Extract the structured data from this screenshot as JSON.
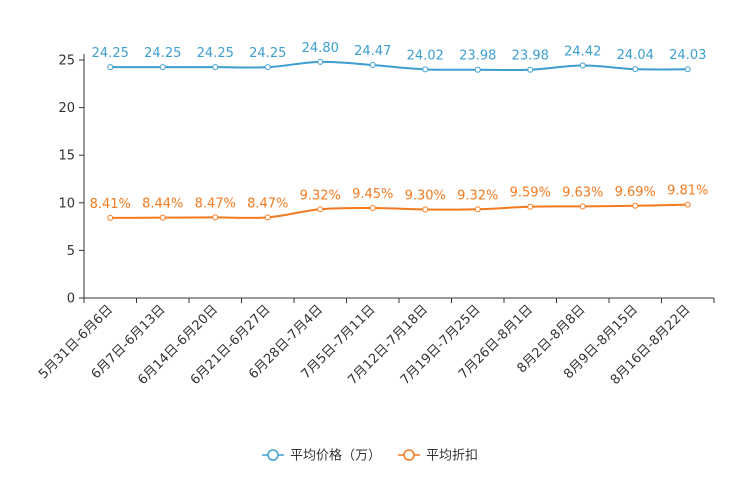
{
  "chart_data": {
    "type": "line",
    "title": "",
    "xlabel": "",
    "ylabel": "",
    "ylim": [
      0,
      25
    ],
    "yticks": [
      0,
      5,
      10,
      15,
      20,
      25
    ],
    "legend_position": "bottom-center",
    "categories": [
      "5月31日-6月6日",
      "6月7日-6月13日",
      "6月14日-6月20日",
      "6月21日-6月27日",
      "6月28日-7月4日",
      "7月5日-7月11日",
      "7月12日-7月18日",
      "7月19日-7月25日",
      "7月26日-8月1日",
      "8月2日-8月8日",
      "8月9日-8月15日",
      "8月16日-8月22日"
    ],
    "series": [
      {
        "name": "平均价格（万）",
        "color": "#3d9fd0",
        "values": [
          24.25,
          24.25,
          24.25,
          24.25,
          24.8,
          24.47,
          24.02,
          23.98,
          23.98,
          24.42,
          24.04,
          24.03
        ],
        "labels": [
          "24.25",
          "24.25",
          "24.25",
          "24.25",
          "24.80",
          "24.47",
          "24.02",
          "23.98",
          "23.98",
          "24.42",
          "24.04",
          "24.03"
        ]
      },
      {
        "name": "平均折扣",
        "color": "#f47a20",
        "values": [
          8.41,
          8.44,
          8.47,
          8.47,
          9.32,
          9.45,
          9.3,
          9.32,
          9.59,
          9.63,
          9.69,
          9.81
        ],
        "labels": [
          "8.41%",
          "8.44%",
          "8.47%",
          "8.47%",
          "9.32%",
          "9.45%",
          "9.30%",
          "9.32%",
          "9.59%",
          "9.63%",
          "9.69%",
          "9.81%"
        ]
      }
    ]
  }
}
